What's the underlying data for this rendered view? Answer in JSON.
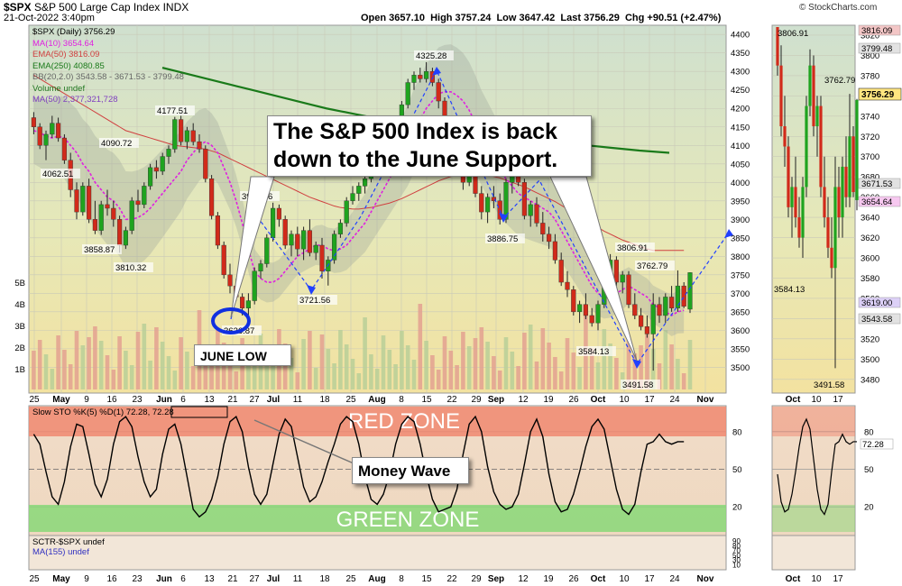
{
  "header": {
    "symbol": "$SPX",
    "name": "S&P 500 Large Cap Index",
    "exchange": "INDX",
    "datetime": "21-Oct-2022 3:40pm",
    "open": "Open 3657.10",
    "high": "High 3757.24",
    "low": "Low 3647.42",
    "last": "Last 3756.29",
    "chg": "Chg +90.51 (+2.47%)",
    "brand": "© StockCharts.com"
  },
  "legend": {
    "spx": "$SPX (Daily) 3756.29",
    "ma10": "MA(10) 3654.64",
    "ema50": "EMA(50) 3816.09",
    "ema250": "EMA(250) 4080.85",
    "bb": "BB(20,2.0) 3543.58 - 3671.53 - 3799.48",
    "volume": "Volume undef",
    "vma": "MA(50) 2,377,321,728"
  },
  "annotations": {
    "main_callout_line1": "The S&P 500 Index is back",
    "main_callout_line2": "down to the June Support.",
    "june_low": "JUNE LOW",
    "money_wave": "Money Wave",
    "red_zone": "RED ZONE",
    "green_zone": "GREEN ZONE"
  },
  "sto_panel": {
    "legend": "Slow STO %K(5) %D(1) 72.28, 72.28",
    "k_last": "72.28"
  },
  "sctr_panel": {
    "legend1": "SCTR-$SPX undef",
    "legend2": "MA(155) undef"
  },
  "colors": {
    "up": "#1fa31f",
    "down": "#d12a1a",
    "ma10": "#e020e0",
    "ema50": "#d04040",
    "ema250": "#1a7a1a",
    "bb_fill": "#9fa59a",
    "red_zone": "#f08870",
    "green_zone": "#88d878",
    "callout_arrow": "#2040ff"
  },
  "chart_data": {
    "type": "candlestick",
    "title": "$SPX S&P 500 Large Cap Index",
    "x_ticks": [
      "25",
      "May",
      "9",
      "16",
      "23",
      "Jun",
      "6",
      "13",
      "21",
      "27",
      "Jul",
      "11",
      "18",
      "25",
      "Aug",
      "8",
      "15",
      "22",
      "29",
      "Sep",
      "12",
      "19",
      "26",
      "Oct",
      "10",
      "17",
      "24",
      "Nov"
    ],
    "y_ticks": [
      3500,
      3550,
      3600,
      3650,
      3700,
      3750,
      3800,
      3850,
      3900,
      3950,
      4000,
      4050,
      4100,
      4150,
      4200,
      4250,
      4300,
      4350,
      4400
    ],
    "ylim": [
      3440,
      4420
    ],
    "volume_ticks": [
      "1B",
      "2B",
      "3B",
      "4B",
      "5B"
    ],
    "price_labels": [
      "4062.51",
      "4177.51",
      "4090.72",
      "3858.87",
      "3810.32",
      "3945.86",
      "3636.87",
      "3721.56",
      "4325.28",
      "3886.75",
      "3806.91",
      "3762.79",
      "3584.13",
      "3491.58"
    ],
    "last_price_tag": "3756.29",
    "right_tags": [
      "3816.09",
      "3799.48",
      "3671.53",
      "3654.64",
      "3619.00",
      "3543.58"
    ],
    "inset": {
      "x_ticks": [
        "Oct",
        "10",
        "17"
      ],
      "y_ticks": [
        3480,
        3500,
        3520,
        3540,
        3560,
        3580,
        3600,
        3620,
        3640,
        3660,
        3680,
        3700,
        3720,
        3740,
        3760,
        3780,
        3800,
        3820
      ],
      "ylim": [
        3470,
        3828
      ],
      "labels": [
        "3806.91",
        "3762.79",
        "3584.13",
        "3491.58"
      ]
    },
    "series": [
      {
        "name": "$SPX",
        "ohlc": [
          [
            4175,
            4190,
            4130,
            4150
          ],
          [
            4150,
            4160,
            4090,
            4100
          ],
          [
            4100,
            4140,
            4060,
            4130
          ],
          [
            4130,
            4180,
            4120,
            4160
          ],
          [
            4160,
            4175,
            4110,
            4120
          ],
          [
            4120,
            4130,
            4050,
            4060
          ],
          [
            4060,
            4080,
            3960,
            3980
          ],
          [
            3980,
            4000,
            3900,
            3920
          ],
          [
            3920,
            4000,
            3910,
            3990
          ],
          [
            3990,
            4010,
            3890,
            3900
          ],
          [
            3900,
            3950,
            3860,
            3870
          ],
          [
            3870,
            3950,
            3858,
            3940
          ],
          [
            3940,
            3980,
            3910,
            3930
          ],
          [
            3930,
            3950,
            3880,
            3900
          ],
          [
            3900,
            3910,
            3810,
            3830
          ],
          [
            3830,
            3880,
            3820,
            3870
          ],
          [
            3870,
            3960,
            3860,
            3950
          ],
          [
            3950,
            3980,
            3920,
            3940
          ],
          [
            3940,
            4000,
            3930,
            3990
          ],
          [
            3990,
            4050,
            3980,
            4040
          ],
          [
            4040,
            4060,
            4010,
            4030
          ],
          [
            4030,
            4080,
            4020,
            4070
          ],
          [
            4070,
            4100,
            4050,
            4090
          ],
          [
            4090,
            4177,
            4080,
            4170
          ],
          [
            4170,
            4180,
            4100,
            4110
          ],
          [
            4110,
            4150,
            4090,
            4140
          ],
          [
            4140,
            4160,
            4100,
            4110
          ],
          [
            4110,
            4130,
            4080,
            4090
          ],
          [
            4090,
            4100,
            4000,
            4010
          ],
          [
            4010,
            4020,
            3900,
            3910
          ],
          [
            3910,
            3920,
            3820,
            3830
          ],
          [
            3830,
            3840,
            3740,
            3750
          ],
          [
            3750,
            3780,
            3700,
            3720
          ],
          [
            3720,
            3740,
            3680,
            3690
          ],
          [
            3690,
            3700,
            3640,
            3660
          ],
          [
            3660,
            3700,
            3636,
            3680
          ],
          [
            3680,
            3770,
            3670,
            3760
          ],
          [
            3760,
            3790,
            3740,
            3780
          ],
          [
            3780,
            3860,
            3770,
            3850
          ],
          [
            3850,
            3945,
            3840,
            3930
          ],
          [
            3930,
            3940,
            3880,
            3900
          ],
          [
            3900,
            3910,
            3820,
            3830
          ],
          [
            3830,
            3870,
            3800,
            3860
          ],
          [
            3860,
            3880,
            3800,
            3820
          ],
          [
            3820,
            3880,
            3790,
            3870
          ],
          [
            3870,
            3900,
            3800,
            3810
          ],
          [
            3810,
            3840,
            3790,
            3830
          ],
          [
            3830,
            3850,
            3740,
            3760
          ],
          [
            3760,
            3800,
            3721,
            3790
          ],
          [
            3790,
            3870,
            3780,
            3860
          ],
          [
            3860,
            3900,
            3850,
            3890
          ],
          [
            3890,
            3960,
            3880,
            3950
          ],
          [
            3950,
            3990,
            3940,
            3970
          ],
          [
            3970,
            4000,
            3950,
            3990
          ],
          [
            3990,
            4020,
            3970,
            4010
          ],
          [
            4010,
            4060,
            4000,
            4050
          ],
          [
            4050,
            4110,
            4040,
            4100
          ],
          [
            4100,
            4130,
            4080,
            4120
          ],
          [
            4120,
            4150,
            4100,
            4140
          ],
          [
            4140,
            4180,
            4120,
            4170
          ],
          [
            4170,
            4220,
            4160,
            4210
          ],
          [
            4210,
            4280,
            4200,
            4270
          ],
          [
            4270,
            4300,
            4250,
            4290
          ],
          [
            4290,
            4310,
            4270,
            4280
          ],
          [
            4280,
            4325,
            4270,
            4300
          ],
          [
            4300,
            4310,
            4260,
            4270
          ],
          [
            4270,
            4280,
            4200,
            4220
          ],
          [
            4220,
            4230,
            4130,
            4140
          ],
          [
            4140,
            4150,
            4080,
            4100
          ],
          [
            4100,
            4120,
            4040,
            4060
          ],
          [
            4060,
            4080,
            3980,
            4000
          ],
          [
            4000,
            4040,
            3990,
            4030
          ],
          [
            4030,
            4050,
            3960,
            3970
          ],
          [
            3970,
            3990,
            3900,
            3920
          ],
          [
            3920,
            3970,
            3890,
            3960
          ],
          [
            3960,
            3990,
            3930,
            3950
          ],
          [
            3950,
            3970,
            3886,
            3900
          ],
          [
            3900,
            4010,
            3890,
            4000
          ],
          [
            4000,
            4030,
            3970,
            4020
          ],
          [
            4020,
            4050,
            3990,
            4000
          ],
          [
            4000,
            4010,
            3900,
            3910
          ],
          [
            3910,
            3950,
            3880,
            3940
          ],
          [
            3940,
            3960,
            3880,
            3890
          ],
          [
            3890,
            3920,
            3840,
            3860
          ],
          [
            3860,
            3880,
            3820,
            3840
          ],
          [
            3840,
            3860,
            3780,
            3790
          ],
          [
            3790,
            3810,
            3720,
            3730
          ],
          [
            3730,
            3760,
            3690,
            3710
          ],
          [
            3710,
            3720,
            3640,
            3650
          ],
          [
            3650,
            3680,
            3620,
            3670
          ],
          [
            3670,
            3700,
            3630,
            3640
          ],
          [
            3640,
            3660,
            3610,
            3620
          ],
          [
            3620,
            3680,
            3600,
            3670
          ],
          [
            3670,
            3760,
            3660,
            3750
          ],
          [
            3750,
            3806,
            3740,
            3790
          ],
          [
            3790,
            3800,
            3720,
            3730
          ],
          [
            3730,
            3760,
            3700,
            3750
          ],
          [
            3750,
            3760,
            3660,
            3670
          ],
          [
            3670,
            3700,
            3630,
            3640
          ],
          [
            3640,
            3660,
            3600,
            3610
          ],
          [
            3610,
            3640,
            3580,
            3590
          ],
          [
            3590,
            3700,
            3491,
            3670
          ],
          [
            3670,
            3690,
            3620,
            3640
          ],
          [
            3640,
            3700,
            3620,
            3690
          ],
          [
            3690,
            3720,
            3650,
            3660
          ],
          [
            3660,
            3762,
            3650,
            3720
          ],
          [
            3720,
            3730,
            3660,
            3665
          ],
          [
            3657,
            3757,
            3647,
            3756
          ]
        ]
      },
      {
        "name": "MA(10)",
        "values": [
          4140,
          4135,
          4125,
          4120,
          4125,
          4120,
          4100,
          4080,
          4050,
          4030,
          4000,
          3980,
          3960,
          3950,
          3930,
          3900,
          3900,
          3905,
          3915,
          3930,
          3950,
          3970,
          3990,
          4010,
          4030,
          4060,
          4080,
          4100,
          4110,
          4100,
          4080,
          4040,
          4000,
          3950,
          3890,
          3820,
          3760,
          3740,
          3730,
          3730,
          3740,
          3760,
          3780,
          3800,
          3810,
          3820,
          3830,
          3830,
          3820,
          3815,
          3820,
          3830,
          3850,
          3870,
          3890,
          3920,
          3950,
          3980,
          4010,
          4040,
          4070,
          4100,
          4140,
          4170,
          4200,
          4220,
          4240,
          4245,
          4245,
          4235,
          4220,
          4195,
          4160,
          4120,
          4090,
          4060,
          4030,
          4010,
          3990,
          3970,
          3960,
          3950,
          3940,
          3930,
          3920,
          3900,
          3870,
          3840,
          3810,
          3780,
          3750,
          3720,
          3700,
          3690,
          3690,
          3700,
          3710,
          3720,
          3710,
          3700,
          3690,
          3670,
          3660,
          3650,
          3640,
          3650,
          3654
        ]
      },
      {
        "name": "EMA(50)",
        "values": [
          4290,
          4280,
          4270,
          4260,
          4250,
          4240,
          4230,
          4220,
          4210,
          4200,
          4190,
          4180,
          4170,
          4160,
          4150,
          4140,
          4135,
          4130,
          4125,
          4120,
          4115,
          4110,
          4105,
          4100,
          4098,
          4096,
          4094,
          4092,
          4090,
          4085,
          4080,
          4072,
          4064,
          4056,
          4048,
          4040,
          4032,
          4024,
          4016,
          4008,
          4000,
          3992,
          3984,
          3976,
          3968,
          3960,
          3954,
          3948,
          3942,
          3936,
          3932,
          3930,
          3928,
          3928,
          3930,
          3932,
          3936,
          3940,
          3944,
          3950,
          3956,
          3964,
          3972,
          3980,
          3988,
          3996,
          4004,
          4010,
          4016,
          4020,
          4022,
          4024,
          4024,
          4022,
          4020,
          4016,
          4012,
          4006,
          4000,
          3994,
          3988,
          3980,
          3972,
          3964,
          3956,
          3948,
          3938,
          3928,
          3918,
          3908,
          3898,
          3888,
          3878,
          3868,
          3860,
          3852,
          3844,
          3838,
          3832,
          3826,
          3820,
          3816,
          3816,
          3816,
          3816,
          3816,
          3816
        ]
      },
      {
        "name": "EMA(250)",
        "values": [
          4310,
          4300,
          4290,
          4280,
          4270,
          4260,
          4250,
          4240,
          4230,
          4220,
          4210,
          4200,
          4192,
          4184,
          4176,
          4168,
          4160,
          4154,
          4148,
          4142,
          4136,
          4130,
          4126,
          4122,
          4118,
          4114,
          4110,
          4106,
          4102,
          4098,
          4094,
          4090,
          4086,
          4083,
          4080
        ]
      }
    ],
    "stochastic": {
      "k": [
        78,
        70,
        48,
        28,
        22,
        40,
        68,
        86,
        84,
        62,
        38,
        28,
        42,
        70,
        88,
        92,
        84,
        60,
        40,
        28,
        34,
        62,
        82,
        86,
        70,
        44,
        18,
        12,
        16,
        26,
        44,
        70,
        88,
        92,
        80,
        52,
        30,
        22,
        30,
        54,
        78,
        90,
        84,
        60,
        36,
        24,
        28,
        40,
        56,
        70,
        86,
        92,
        88,
        70,
        44,
        26,
        22,
        30,
        46,
        70,
        86,
        92,
        88,
        70,
        46,
        26,
        16,
        18,
        20,
        34,
        62,
        86,
        92,
        80,
        52,
        32,
        22,
        18,
        20,
        30,
        54,
        80,
        90,
        76,
        46,
        24,
        16,
        18,
        30,
        48,
        68,
        84,
        90,
        82,
        58,
        34,
        18,
        14,
        22,
        48,
        70,
        72,
        78,
        72,
        70,
        72,
        72
      ]
    }
  }
}
